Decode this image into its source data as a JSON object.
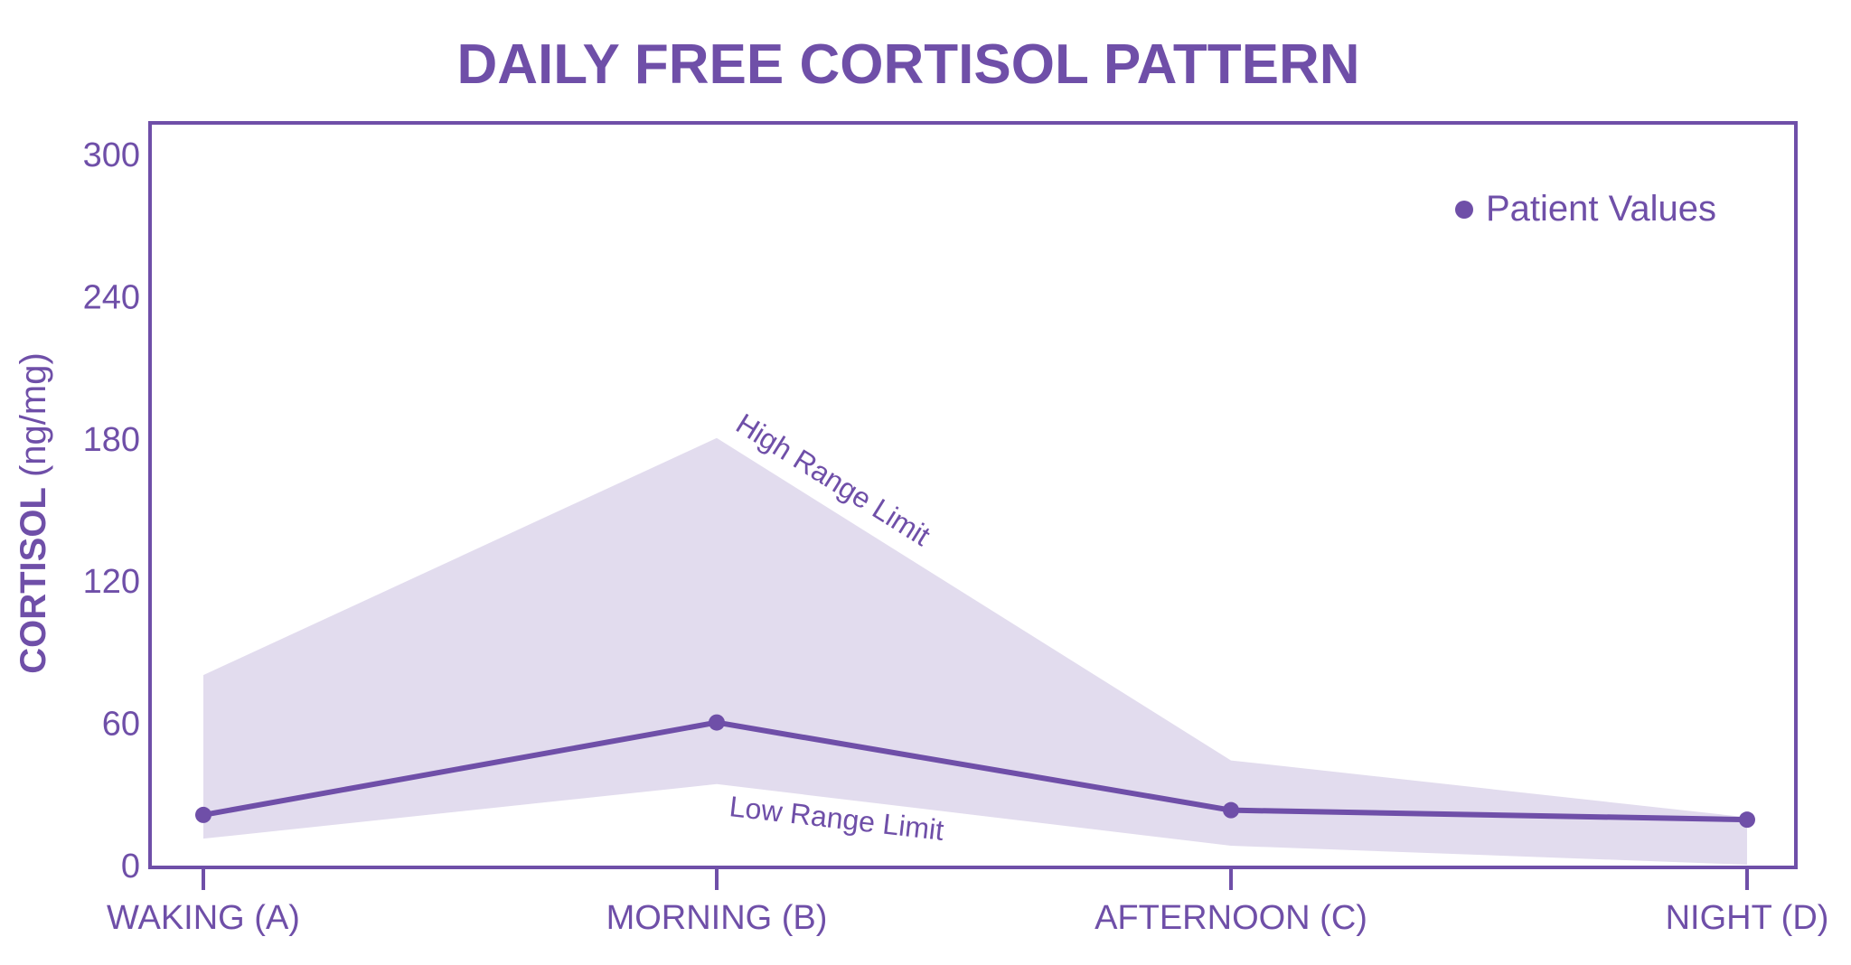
{
  "chart_data": {
    "type": "line",
    "title": "DAILY FREE CORTISOL PATTERN",
    "ylabel_bold": "CORTISOL",
    "ylabel_unit": "(ng/mg)",
    "xlabel": "",
    "categories": [
      "WAKING (A)",
      "MORNING (B)",
      "AFTERNOON (C)",
      "NIGHT (D)"
    ],
    "ylim": [
      0,
      300
    ],
    "yticks": [
      0,
      60,
      120,
      180,
      240,
      300
    ],
    "series": [
      {
        "name": "Patient Values",
        "values": [
          21,
          60,
          23,
          19
        ]
      }
    ],
    "range_band": {
      "high": [
        80,
        180,
        44,
        20
      ],
      "low": [
        11,
        34,
        8,
        0
      ],
      "high_label": "High Range Limit",
      "low_label": "Low Range Limit"
    },
    "legend": {
      "label": "Patient Values",
      "placement": "top-right"
    },
    "colors": {
      "primary": "#6f4fa8",
      "band": "#e2dcee"
    }
  }
}
